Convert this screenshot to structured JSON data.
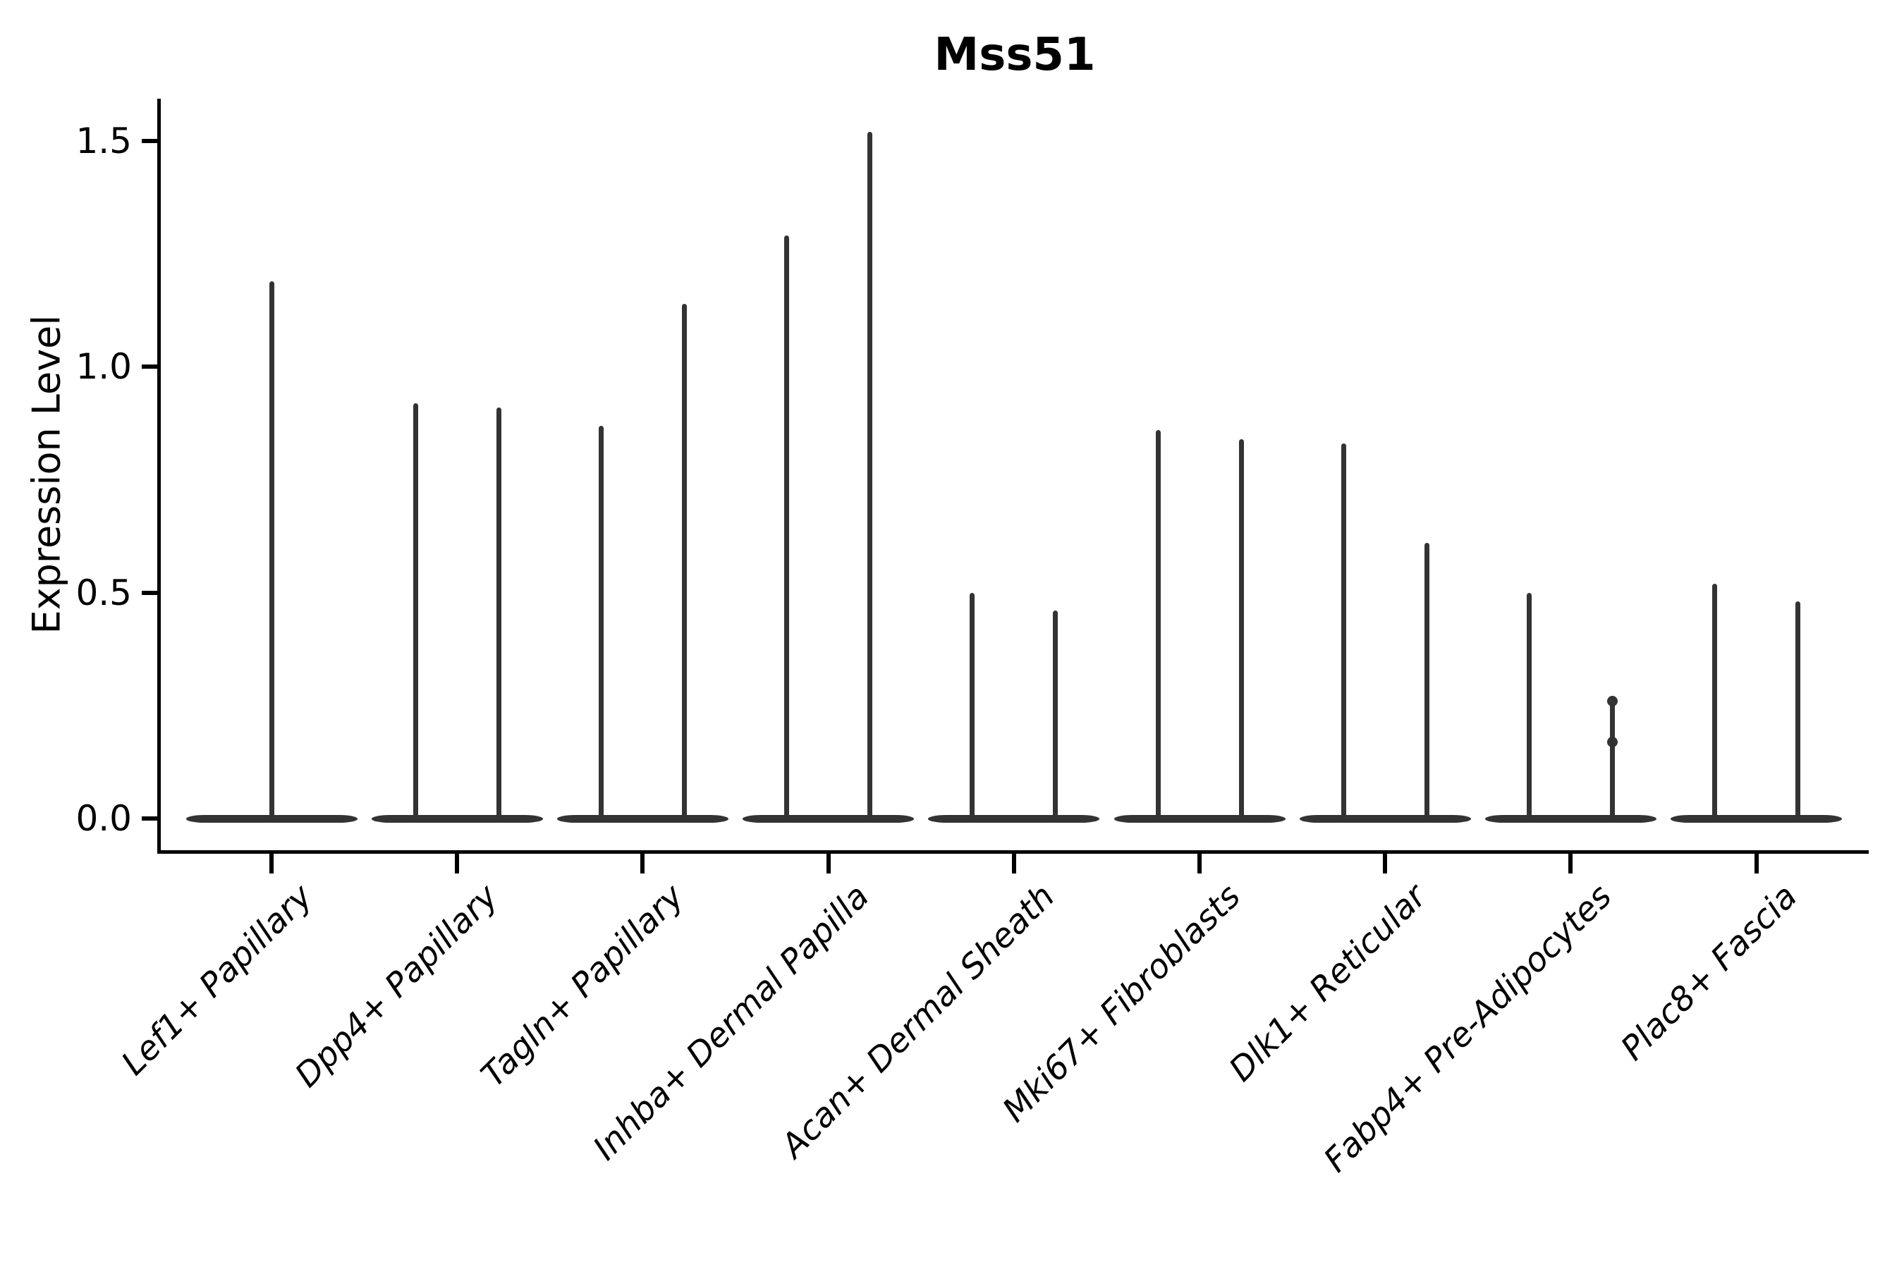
{
  "figure": {
    "title": "Mss51"
  },
  "axes": {
    "ylabel": "Expression Level",
    "ytick_labels": [
      "0.0",
      "0.5",
      "1.0",
      "1.5"
    ]
  },
  "chart_data": {
    "type": "violin",
    "title": "Mss51",
    "xlabel": "",
    "ylabel": "Expression Level",
    "ylim": [
      -0.07,
      1.59
    ],
    "yticks": [
      0.0,
      0.5,
      1.0,
      1.5
    ],
    "grid": false,
    "legend": null,
    "xtick_rotation_deg": 45,
    "xtick_style": "italic",
    "shape_note": "Each violin is collapsed into a wide flat band at expression 0 with one thin vertical density tail per violin; values below are the maximum expression reached by each tail.",
    "categories": [
      "Lef1+ Papillary",
      "Dpp4+ Papillary",
      "Tagln+ Papillary",
      "Inhba+ Dermal Papilla",
      "Acan+ Dermal Sheath",
      "Mki67+ Fibroblasts",
      "Dlk1+ Reticular",
      "Fabp4+ Pre-Adipocytes",
      "Plac8+ Fascia"
    ],
    "violins": [
      {
        "category": "Lef1+ Papillary",
        "tail_maxima": [
          1.19
        ]
      },
      {
        "category": "Dpp4+ Papillary",
        "tail_maxima": [
          0.92,
          0.91
        ]
      },
      {
        "category": "Tagln+ Papillary",
        "tail_maxima": [
          0.87,
          1.14
        ]
      },
      {
        "category": "Inhba+ Dermal Papilla",
        "tail_maxima": [
          1.29,
          1.52
        ]
      },
      {
        "category": "Acan+ Dermal Sheath",
        "tail_maxima": [
          0.5,
          0.46
        ]
      },
      {
        "category": "Mki67+ Fibroblasts",
        "tail_maxima": [
          0.86,
          0.84
        ]
      },
      {
        "category": "Dlk1+ Reticular",
        "tail_maxima": [
          0.83,
          0.61
        ]
      },
      {
        "category": "Fabp4+ Pre-Adipocytes",
        "tail_maxima": [
          0.5,
          0.27
        ],
        "bumps_on_last_tail": [
          0.26,
          0.17
        ]
      },
      {
        "category": "Plac8+ Fascia",
        "tail_maxima": [
          0.52,
          0.48
        ]
      }
    ],
    "baseline_value": 0.0
  },
  "colors": {
    "violin": "#333333",
    "axis": "#000000",
    "text": "#000000",
    "background": "#ffffff"
  }
}
